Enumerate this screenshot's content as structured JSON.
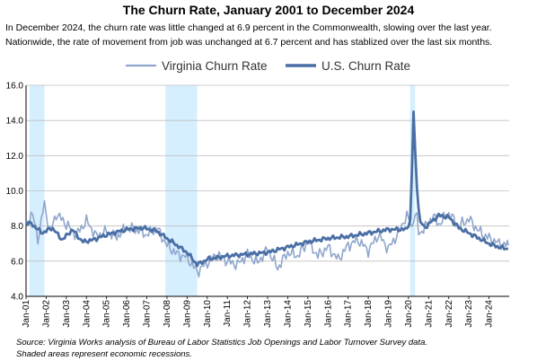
{
  "chart_data": {
    "type": "line",
    "title": "The Churn Rate, January 2001 to December 2024",
    "subtitle": "In December 2024, the churn rate was little changed at 6.9 percent in the Commonwealth, slowing over the last year. Nationwide, the rate of movement from job was unchanged at 6.7 percent and has stablized over the last six months.",
    "xlabel": "",
    "ylabel": "",
    "ylim": [
      4.0,
      16.0
    ],
    "yticks": [
      "4.0",
      "6.0",
      "8.0",
      "10.0",
      "12.0",
      "14.0",
      "16.0"
    ],
    "xticks": [
      "Jan-01",
      "Jan-02",
      "Jan-03",
      "Jan-04",
      "Jan-05",
      "Jan-06",
      "Jan-07",
      "Jan-08",
      "Jan-09",
      "Jan-10",
      "Jan-11",
      "Jan-12",
      "Jan-13",
      "Jan-14",
      "Jan-15",
      "Jan-16",
      "Jan-17",
      "Jan-18",
      "Jan-19",
      "Jan-20",
      "Jan-21",
      "Jan-22",
      "Jan-23",
      "Jan-24"
    ],
    "x_start_year": 2001,
    "x_end_year": 2025,
    "grid": "horizontal",
    "legend_position": "top",
    "recessions": [
      [
        2001.17,
        2001.92
      ],
      [
        2007.92,
        2009.5
      ],
      [
        2020.08,
        2020.33
      ]
    ],
    "series": [
      {
        "name": "Virginia Churn Rate",
        "color": "#8fa6cc",
        "anchors": [
          [
            2001.0,
            8.0
          ],
          [
            2001.3,
            8.8
          ],
          [
            2001.6,
            7.2
          ],
          [
            2001.9,
            9.3
          ],
          [
            2002.2,
            7.6
          ],
          [
            2002.5,
            8.7
          ],
          [
            2003.0,
            8.1
          ],
          [
            2003.5,
            7.5
          ],
          [
            2004.0,
            8.3
          ],
          [
            2004.5,
            7.4
          ],
          [
            2005.0,
            7.7
          ],
          [
            2005.5,
            7.4
          ],
          [
            2006.0,
            7.9
          ],
          [
            2006.5,
            7.8
          ],
          [
            2007.0,
            7.5
          ],
          [
            2007.5,
            7.9
          ],
          [
            2008.0,
            6.9
          ],
          [
            2008.5,
            6.4
          ],
          [
            2009.0,
            6.2
          ],
          [
            2009.5,
            5.4
          ],
          [
            2010.0,
            5.9
          ],
          [
            2010.5,
            6.4
          ],
          [
            2011.0,
            6.0
          ],
          [
            2011.5,
            5.8
          ],
          [
            2012.0,
            6.4
          ],
          [
            2012.5,
            5.9
          ],
          [
            2013.0,
            6.7
          ],
          [
            2013.5,
            5.6
          ],
          [
            2014.0,
            6.5
          ],
          [
            2014.5,
            6.3
          ],
          [
            2015.0,
            7.1
          ],
          [
            2015.5,
            6.3
          ],
          [
            2016.0,
            6.8
          ],
          [
            2016.5,
            6.1
          ],
          [
            2017.0,
            6.9
          ],
          [
            2017.5,
            7.2
          ],
          [
            2018.0,
            6.6
          ],
          [
            2018.5,
            7.5
          ],
          [
            2019.0,
            6.7
          ],
          [
            2019.5,
            7.6
          ],
          [
            2019.9,
            8.6
          ],
          [
            2020.2,
            7.9
          ],
          [
            2020.4,
            9.0
          ],
          [
            2020.5,
            7.5
          ],
          [
            2020.9,
            8.0
          ],
          [
            2021.2,
            8.6
          ],
          [
            2021.5,
            8.1
          ],
          [
            2022.0,
            8.7
          ],
          [
            2022.5,
            8.0
          ],
          [
            2023.0,
            8.4
          ],
          [
            2023.5,
            7.7
          ],
          [
            2024.0,
            7.3
          ],
          [
            2024.5,
            7.0
          ],
          [
            2024.95,
            6.9
          ]
        ]
      },
      {
        "name": "U.S. Churn Rate",
        "color": "#4a6fa5",
        "anchors": [
          [
            2001.0,
            8.2
          ],
          [
            2001.3,
            8.1
          ],
          [
            2001.8,
            7.6
          ],
          [
            2002.3,
            7.9
          ],
          [
            2002.8,
            7.2
          ],
          [
            2003.3,
            7.8
          ],
          [
            2003.8,
            7.1
          ],
          [
            2004.3,
            7.2
          ],
          [
            2005.0,
            7.5
          ],
          [
            2006.0,
            7.8
          ],
          [
            2006.8,
            7.9
          ],
          [
            2007.5,
            7.7
          ],
          [
            2008.0,
            7.3
          ],
          [
            2008.5,
            6.9
          ],
          [
            2009.0,
            6.5
          ],
          [
            2009.5,
            5.8
          ],
          [
            2010.0,
            6.1
          ],
          [
            2010.5,
            6.2
          ],
          [
            2011.0,
            6.3
          ],
          [
            2012.0,
            6.4
          ],
          [
            2013.0,
            6.5
          ],
          [
            2014.0,
            6.8
          ],
          [
            2015.0,
            7.1
          ],
          [
            2016.0,
            7.3
          ],
          [
            2017.0,
            7.4
          ],
          [
            2018.0,
            7.6
          ],
          [
            2019.0,
            7.8
          ],
          [
            2019.9,
            7.8
          ],
          [
            2020.1,
            8.4
          ],
          [
            2020.25,
            14.5
          ],
          [
            2020.4,
            10.4
          ],
          [
            2020.55,
            8.3
          ],
          [
            2020.8,
            7.9
          ],
          [
            2021.2,
            8.3
          ],
          [
            2021.5,
            8.6
          ],
          [
            2022.0,
            8.5
          ],
          [
            2022.5,
            7.9
          ],
          [
            2023.0,
            7.6
          ],
          [
            2023.5,
            7.3
          ],
          [
            2024.0,
            7.0
          ],
          [
            2024.5,
            6.8
          ],
          [
            2024.95,
            6.7
          ]
        ]
      }
    ]
  },
  "source_note": {
    "line1": "Source: Virginia Works analysis of Bureau of Labor Statistics Job Openings and Labor Turnover Survey data.",
    "line2": "Shaded areas represent economic recessions."
  }
}
